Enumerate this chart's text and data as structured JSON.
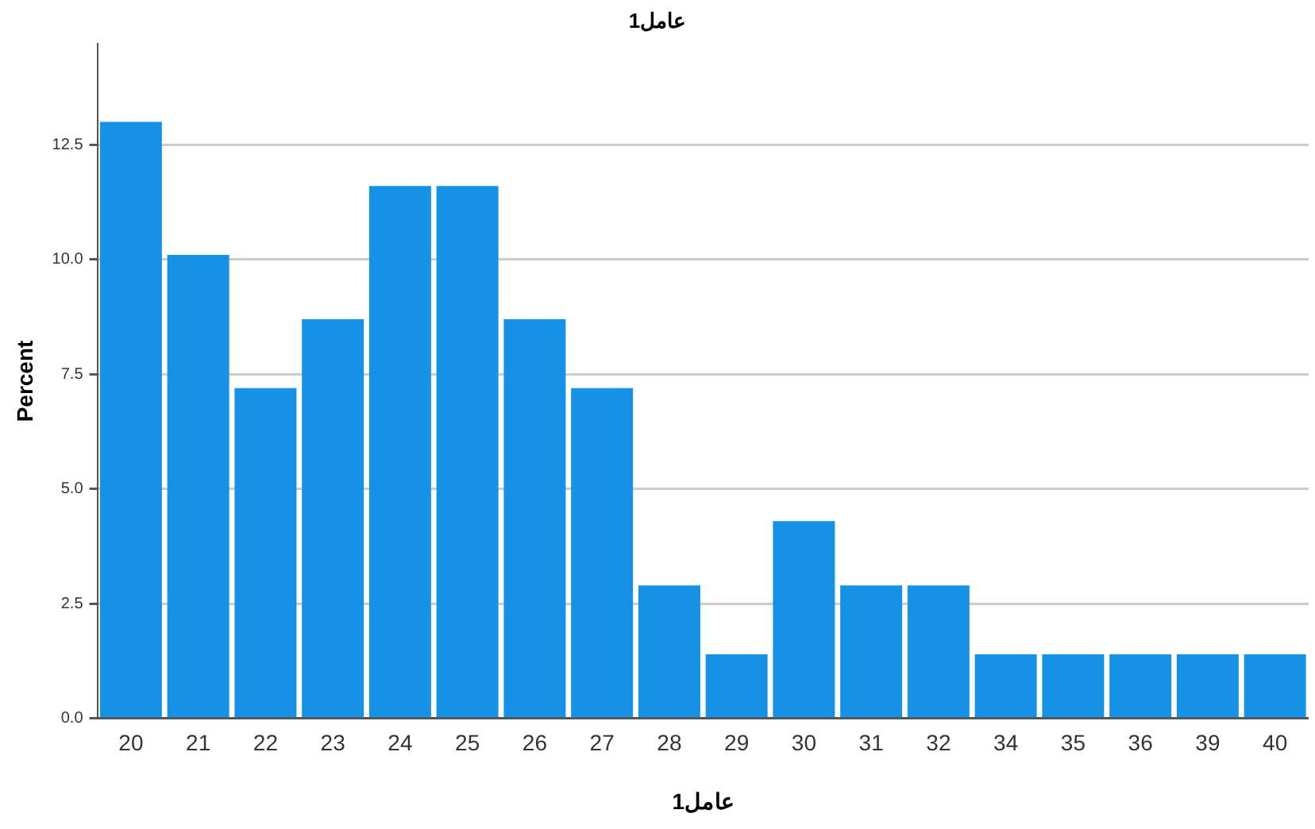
{
  "chart_data": {
    "type": "bar",
    "title": "عامل1",
    "xlabel": "عامل1",
    "ylabel": "Percent",
    "categories": [
      "20",
      "21",
      "22",
      "23",
      "24",
      "25",
      "26",
      "27",
      "28",
      "29",
      "30",
      "31",
      "32",
      "34",
      "35",
      "36",
      "39",
      "40"
    ],
    "values": [
      13.0,
      10.1,
      7.2,
      8.7,
      11.6,
      11.6,
      8.7,
      7.2,
      2.9,
      1.4,
      4.3,
      2.9,
      2.9,
      1.4,
      1.4,
      1.4,
      1.4,
      1.4
    ],
    "color": "#1591e6",
    "ylim": [
      0,
      14.7
    ],
    "yticks": [
      {
        "value": 0,
        "label": "0.0"
      },
      {
        "value": 2.5,
        "label": "2.5"
      },
      {
        "value": 5,
        "label": "5.0"
      },
      {
        "value": 7.5,
        "label": "7.5"
      },
      {
        "value": 10,
        "label": "10.0"
      },
      {
        "value": 12.5,
        "label": "12.5"
      }
    ],
    "grid": "y",
    "legend": false
  }
}
